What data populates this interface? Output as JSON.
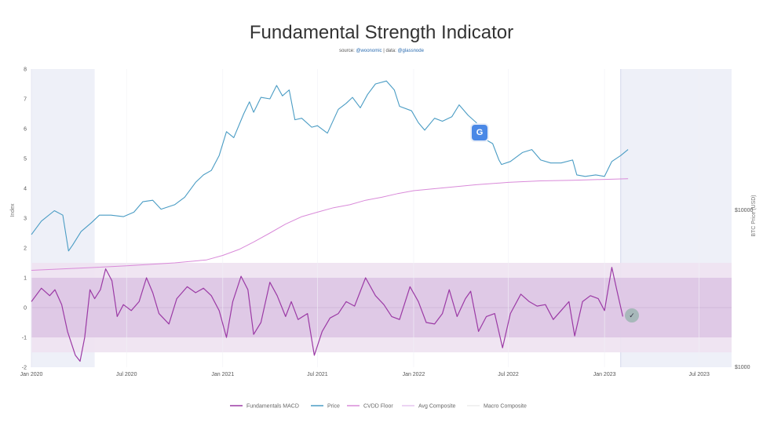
{
  "header": {
    "title": "Fundamental Strength Indicator",
    "source_label": "source:",
    "source_handle": "@woonomic",
    "data_label": "| data:",
    "data_handle": "@glassnode"
  },
  "colors": {
    "macd": "#9b3aa5",
    "price": "#4a9cc4",
    "cvdd": "#d98ad9",
    "band_inner": "#dcc4e4",
    "band_outer": "#eee2f1",
    "shade": "#eef0f8",
    "avg_composite": "#e6c6ef",
    "macro_composite": "#ececec"
  },
  "chart_data": {
    "type": "line",
    "title": "Fundamental Strength Indicator",
    "x_ticks": [
      "Jan 2020",
      "Jul 2020",
      "Jan 2021",
      "Jul 2021",
      "Jan 2022",
      "Jul 2022",
      "Jan 2023",
      "Jul 2023"
    ],
    "x_range": [
      "2020-01-01",
      "2023-09-01"
    ],
    "left_axis": {
      "label": "Index",
      "range": [
        -2,
        8
      ],
      "ticks": [
        "-2",
        "-1",
        "0",
        "1",
        "2",
        "3",
        "4",
        "5",
        "6",
        "7",
        "8"
      ]
    },
    "right_axis": {
      "label": "BTC Price (USD)",
      "scale": "log",
      "ticks": [
        "$10000",
        "$1000"
      ]
    },
    "bands": {
      "inner": [
        -1,
        1
      ],
      "outer": [
        -1.5,
        1.5
      ]
    },
    "shaded_ranges": [
      [
        "2020-01-01",
        "2020-05-01"
      ],
      [
        "2023-02-01",
        "2023-09-01"
      ]
    ],
    "legend": [
      "Fundamentals MACD",
      "Price",
      "CVDD Floor",
      "Avg Composite",
      "Macro Composite"
    ],
    "series": [
      {
        "name": "Price",
        "axis": "left_index_scale",
        "points": [
          [
            "2020-01-01",
            2.45
          ],
          [
            "2020-01-20",
            2.9
          ],
          [
            "2020-02-14",
            3.25
          ],
          [
            "2020-03-01",
            3.1
          ],
          [
            "2020-03-12",
            1.9
          ],
          [
            "2020-03-20",
            2.1
          ],
          [
            "2020-04-05",
            2.55
          ],
          [
            "2020-04-25",
            2.85
          ],
          [
            "2020-05-10",
            3.1
          ],
          [
            "2020-06-01",
            3.1
          ],
          [
            "2020-06-25",
            3.05
          ],
          [
            "2020-07-15",
            3.2
          ],
          [
            "2020-08-01",
            3.55
          ],
          [
            "2020-08-20",
            3.6
          ],
          [
            "2020-09-05",
            3.3
          ],
          [
            "2020-10-01",
            3.45
          ],
          [
            "2020-10-20",
            3.7
          ],
          [
            "2020-11-10",
            4.2
          ],
          [
            "2020-11-25",
            4.45
          ],
          [
            "2020-12-10",
            4.6
          ],
          [
            "2020-12-25",
            5.1
          ],
          [
            "2021-01-08",
            5.9
          ],
          [
            "2021-01-22",
            5.7
          ],
          [
            "2021-02-10",
            6.5
          ],
          [
            "2021-02-21",
            6.9
          ],
          [
            "2021-03-01",
            6.55
          ],
          [
            "2021-03-15",
            7.05
          ],
          [
            "2021-04-01",
            7.0
          ],
          [
            "2021-04-14",
            7.45
          ],
          [
            "2021-04-25",
            7.1
          ],
          [
            "2021-05-08",
            7.3
          ],
          [
            "2021-05-19",
            6.3
          ],
          [
            "2021-06-01",
            6.35
          ],
          [
            "2021-06-20",
            6.05
          ],
          [
            "2021-07-01",
            6.1
          ],
          [
            "2021-07-20",
            5.85
          ],
          [
            "2021-08-10",
            6.65
          ],
          [
            "2021-08-25",
            6.85
          ],
          [
            "2021-09-06",
            7.05
          ],
          [
            "2021-09-21",
            6.7
          ],
          [
            "2021-10-05",
            7.15
          ],
          [
            "2021-10-20",
            7.5
          ],
          [
            "2021-11-10",
            7.6
          ],
          [
            "2021-11-25",
            7.3
          ],
          [
            "2021-12-05",
            6.75
          ],
          [
            "2021-12-28",
            6.6
          ],
          [
            "2022-01-10",
            6.2
          ],
          [
            "2022-01-22",
            5.95
          ],
          [
            "2022-02-10",
            6.35
          ],
          [
            "2022-02-25",
            6.25
          ],
          [
            "2022-03-15",
            6.4
          ],
          [
            "2022-03-29",
            6.8
          ],
          [
            "2022-04-15",
            6.45
          ],
          [
            "2022-05-01",
            6.2
          ],
          [
            "2022-05-12",
            5.7
          ],
          [
            "2022-06-01",
            5.5
          ],
          [
            "2022-06-13",
            4.95
          ],
          [
            "2022-06-18",
            4.8
          ],
          [
            "2022-07-05",
            4.9
          ],
          [
            "2022-07-28",
            5.2
          ],
          [
            "2022-08-15",
            5.3
          ],
          [
            "2022-09-01",
            4.95
          ],
          [
            "2022-09-20",
            4.85
          ],
          [
            "2022-10-10",
            4.85
          ],
          [
            "2022-11-01",
            4.95
          ],
          [
            "2022-11-09",
            4.45
          ],
          [
            "2022-11-25",
            4.4
          ],
          [
            "2022-12-15",
            4.45
          ],
          [
            "2023-01-01",
            4.4
          ],
          [
            "2023-01-15",
            4.9
          ],
          [
            "2023-02-01",
            5.1
          ],
          [
            "2023-02-15",
            5.3
          ]
        ]
      },
      {
        "name": "CVDD Floor",
        "axis": "left_index_scale",
        "points": [
          [
            "2020-01-01",
            1.25
          ],
          [
            "2020-04-01",
            1.32
          ],
          [
            "2020-07-01",
            1.4
          ],
          [
            "2020-10-01",
            1.5
          ],
          [
            "2020-12-01",
            1.6
          ],
          [
            "2021-01-01",
            1.75
          ],
          [
            "2021-02-01",
            1.95
          ],
          [
            "2021-03-01",
            2.2
          ],
          [
            "2021-04-01",
            2.5
          ],
          [
            "2021-05-01",
            2.8
          ],
          [
            "2021-06-01",
            3.05
          ],
          [
            "2021-07-01",
            3.2
          ],
          [
            "2021-08-01",
            3.35
          ],
          [
            "2021-09-01",
            3.45
          ],
          [
            "2021-10-01",
            3.6
          ],
          [
            "2021-11-01",
            3.7
          ],
          [
            "2021-12-01",
            3.82
          ],
          [
            "2022-01-01",
            3.92
          ],
          [
            "2022-03-01",
            4.02
          ],
          [
            "2022-05-01",
            4.12
          ],
          [
            "2022-07-01",
            4.2
          ],
          [
            "2022-09-01",
            4.25
          ],
          [
            "2022-11-01",
            4.27
          ],
          [
            "2023-01-01",
            4.3
          ],
          [
            "2023-02-15",
            4.32
          ]
        ]
      },
      {
        "name": "Fundamentals MACD",
        "axis": "left",
        "points": [
          [
            "2020-01-01",
            0.2
          ],
          [
            "2020-01-20",
            0.65
          ],
          [
            "2020-02-05",
            0.4
          ],
          [
            "2020-02-15",
            0.6
          ],
          [
            "2020-02-28",
            0.1
          ],
          [
            "2020-03-10",
            -0.8
          ],
          [
            "2020-03-25",
            -1.6
          ],
          [
            "2020-04-03",
            -1.8
          ],
          [
            "2020-04-12",
            -1.0
          ],
          [
            "2020-04-22",
            0.6
          ],
          [
            "2020-05-01",
            0.3
          ],
          [
            "2020-05-12",
            0.6
          ],
          [
            "2020-05-22",
            1.3
          ],
          [
            "2020-06-03",
            0.9
          ],
          [
            "2020-06-13",
            -0.3
          ],
          [
            "2020-06-25",
            0.1
          ],
          [
            "2020-07-10",
            -0.1
          ],
          [
            "2020-07-25",
            0.2
          ],
          [
            "2020-08-08",
            1.0
          ],
          [
            "2020-08-20",
            0.5
          ],
          [
            "2020-09-01",
            -0.2
          ],
          [
            "2020-09-20",
            -0.55
          ],
          [
            "2020-10-05",
            0.3
          ],
          [
            "2020-10-25",
            0.7
          ],
          [
            "2020-11-10",
            0.5
          ],
          [
            "2020-11-25",
            0.65
          ],
          [
            "2020-12-10",
            0.4
          ],
          [
            "2020-12-25",
            -0.1
          ],
          [
            "2021-01-08",
            -1.0
          ],
          [
            "2021-01-20",
            0.2
          ],
          [
            "2021-02-05",
            1.05
          ],
          [
            "2021-02-18",
            0.6
          ],
          [
            "2021-03-01",
            -0.9
          ],
          [
            "2021-03-15",
            -0.5
          ],
          [
            "2021-04-01",
            0.85
          ],
          [
            "2021-04-15",
            0.4
          ],
          [
            "2021-05-01",
            -0.3
          ],
          [
            "2021-05-12",
            0.2
          ],
          [
            "2021-05-25",
            -0.4
          ],
          [
            "2021-06-12",
            -0.2
          ],
          [
            "2021-06-25",
            -1.6
          ],
          [
            "2021-07-10",
            -0.8
          ],
          [
            "2021-07-25",
            -0.35
          ],
          [
            "2021-08-10",
            -0.2
          ],
          [
            "2021-08-25",
            0.2
          ],
          [
            "2021-09-10",
            0.05
          ],
          [
            "2021-10-01",
            1.0
          ],
          [
            "2021-10-20",
            0.4
          ],
          [
            "2021-11-05",
            0.1
          ],
          [
            "2021-11-20",
            -0.3
          ],
          [
            "2021-12-05",
            -0.4
          ],
          [
            "2021-12-25",
            0.7
          ],
          [
            "2022-01-10",
            0.2
          ],
          [
            "2022-01-25",
            -0.5
          ],
          [
            "2022-02-10",
            -0.55
          ],
          [
            "2022-02-25",
            -0.2
          ],
          [
            "2022-03-10",
            0.6
          ],
          [
            "2022-03-25",
            -0.3
          ],
          [
            "2022-04-10",
            0.3
          ],
          [
            "2022-04-20",
            0.55
          ],
          [
            "2022-05-05",
            -0.8
          ],
          [
            "2022-05-20",
            -0.3
          ],
          [
            "2022-06-05",
            -0.2
          ],
          [
            "2022-06-20",
            -1.35
          ],
          [
            "2022-07-05",
            -0.2
          ],
          [
            "2022-07-25",
            0.45
          ],
          [
            "2022-08-10",
            0.2
          ],
          [
            "2022-08-25",
            0.05
          ],
          [
            "2022-09-10",
            0.1
          ],
          [
            "2022-09-25",
            -0.4
          ],
          [
            "2022-10-10",
            -0.1
          ],
          [
            "2022-10-25",
            0.2
          ],
          [
            "2022-11-05",
            -0.95
          ],
          [
            "2022-11-20",
            0.2
          ],
          [
            "2022-12-05",
            0.4
          ],
          [
            "2022-12-20",
            0.3
          ],
          [
            "2023-01-01",
            -0.1
          ],
          [
            "2023-01-15",
            1.35
          ],
          [
            "2023-01-25",
            0.55
          ],
          [
            "2023-02-05",
            -0.3
          ]
        ]
      }
    ]
  }
}
